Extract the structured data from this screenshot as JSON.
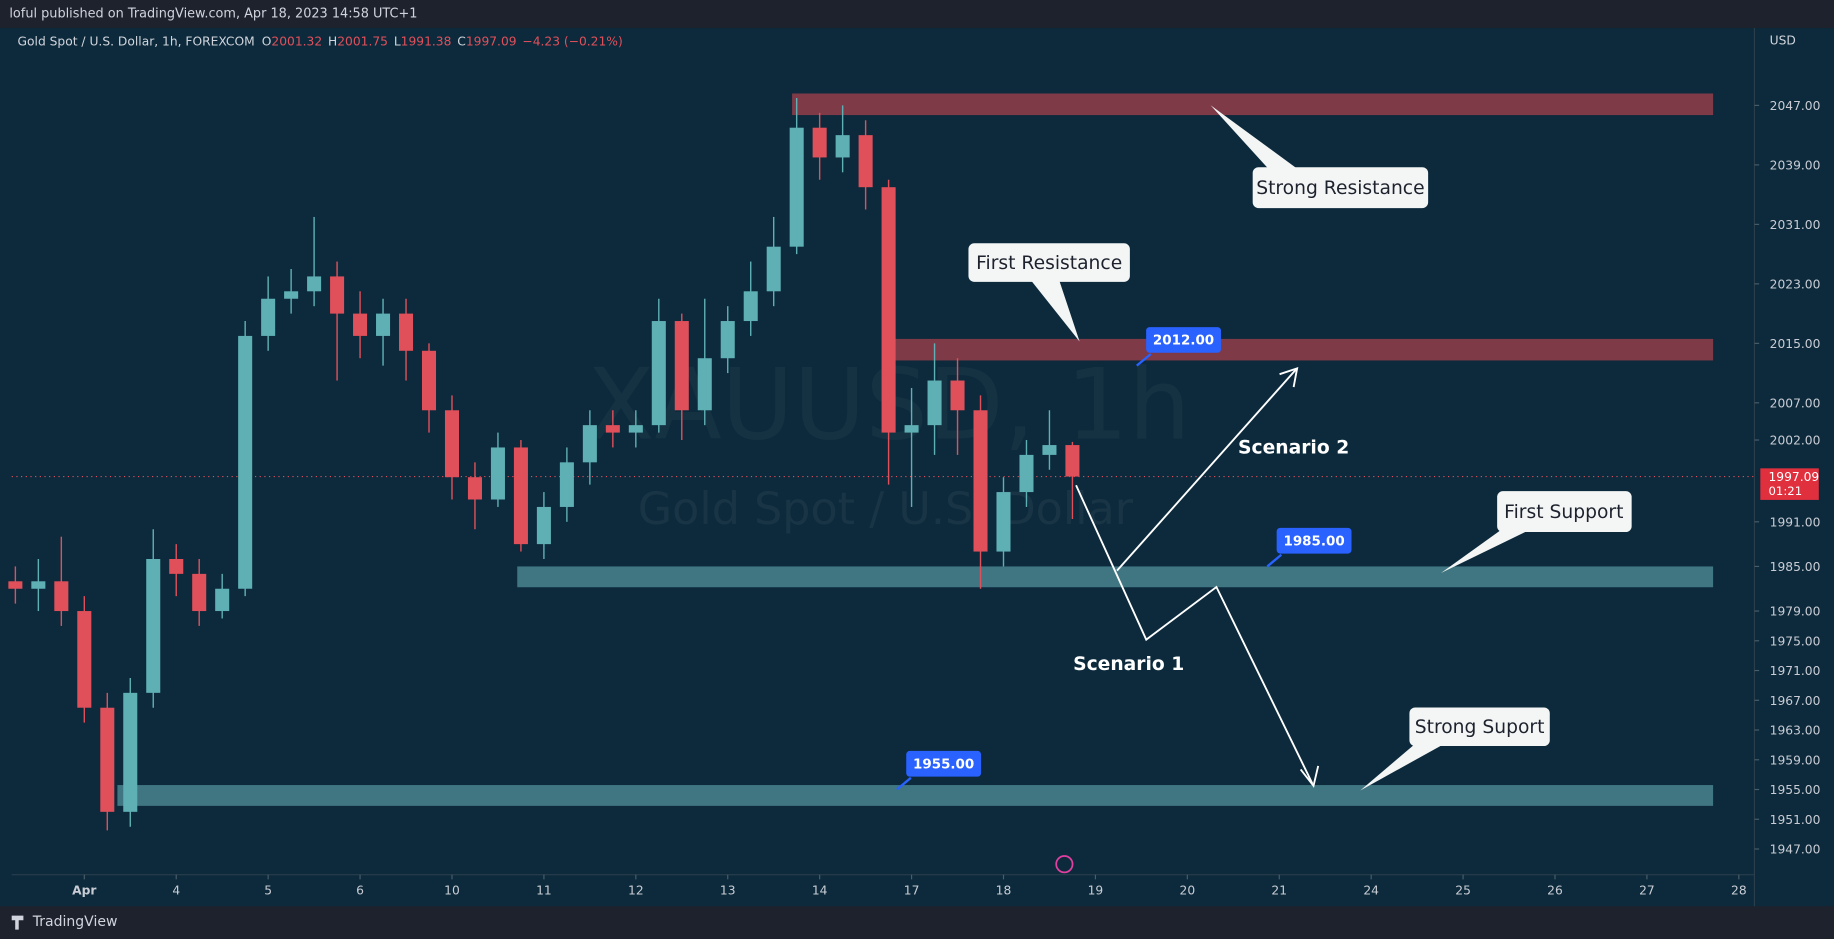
{
  "header": {
    "published": "loful published on TradingView.com, Apr 18, 2023 14:58 UTC+1",
    "brand": "TradingView"
  },
  "chart_data": {
    "type": "candlestick",
    "title": "Gold Spot / U.S. Dollar, 1h, FOREXCOM",
    "ohlc_labels": [
      "O",
      "H",
      "L",
      "C"
    ],
    "change": "−4.23 (−0.21%)",
    "currency": "USD",
    "watermark_symbol": "XAUUSD, 1h",
    "watermark_name": "Gold Spot / U.S. Dollar",
    "up_color": "#5fb0b4",
    "down_color": "#e0505b",
    "x": [
      -0.75,
      -0.5,
      -0.25,
      0,
      0.25,
      0.5,
      0.75,
      1,
      1.25,
      1.5,
      1.75,
      2,
      2.25,
      2.5,
      2.75,
      3,
      3.25,
      3.5,
      3.75,
      4,
      4.25,
      4.5,
      4.75,
      5,
      5.25,
      5.5,
      5.75,
      6,
      6.25,
      6.5,
      6.75,
      7,
      7.25,
      7.5,
      7.75,
      8,
      8.25,
      8.5,
      8.75,
      9,
      9.25,
      9.5,
      9.75,
      10,
      10.25,
      10.5,
      10.75
    ],
    "open": [
      1983,
      1982,
      1983,
      1979,
      1966,
      1952,
      1968,
      1986,
      1984,
      1979,
      1982,
      2016,
      2021,
      2022,
      2024,
      2019,
      2016,
      2019,
      2014,
      2006,
      1997,
      1994,
      2001,
      1988,
      1993,
      1999,
      2004,
      2003,
      2004,
      2018,
      2006,
      2013,
      2018,
      2022,
      2028,
      2044,
      2040,
      2043,
      2036,
      2003,
      2004,
      2010,
      2006,
      1987,
      1995,
      2000,
      2001.32
    ],
    "high": [
      1985,
      1986,
      1989,
      1981,
      1968,
      1970,
      1990,
      1988,
      1986,
      1984,
      2018,
      2024,
      2025,
      2032,
      2026,
      2022,
      2021,
      2021,
      2015,
      2008,
      1999,
      2003,
      2002,
      1995,
      2001,
      2006,
      2006,
      2006,
      2021,
      2019,
      2021,
      2020,
      2026,
      2032,
      2048,
      2046,
      2047,
      2045,
      2037,
      2009,
      2015,
      2013,
      2008,
      1997,
      2002,
      2006,
      2001.75
    ],
    "low": [
      1980,
      1979,
      1977,
      1964,
      1949.5,
      1950,
      1966,
      1981,
      1977,
      1978,
      1981,
      2014,
      2019,
      2020,
      2010,
      2013,
      2012,
      2010,
      2003,
      1994,
      1990,
      1993,
      1987,
      1986,
      1991,
      1996,
      2001,
      2001,
      2003,
      2002,
      2004,
      2011,
      2016,
      2020,
      2027,
      2037,
      2038,
      2033,
      1996,
      1993,
      2000,
      2000,
      1982,
      1985,
      1993,
      1998,
      1991.38
    ],
    "close": [
      1982,
      1983,
      1979,
      1966,
      1952,
      1968,
      1986,
      1984,
      1979,
      1982,
      2016,
      2021,
      2022,
      2024,
      2019,
      2016,
      2019,
      2014,
      2006,
      1997,
      1994,
      2001,
      1988,
      1993,
      1999,
      2004,
      2003,
      2004,
      2018,
      2006,
      2013,
      2018,
      2022,
      2028,
      2044,
      2040,
      2043,
      2036,
      2003,
      2004,
      2010,
      2006,
      1987,
      1995,
      2000,
      2001.32,
      1997.09
    ],
    "last_price": 1997.09,
    "countdown": "01:21",
    "ylim": [
      1939.3,
      2057.4
    ],
    "yticks": [
      {
        "value": 2047,
        "label": "2047.00"
      },
      {
        "value": 2039,
        "label": "2039.00"
      },
      {
        "value": 2031,
        "label": "2031.00"
      },
      {
        "value": 2023,
        "label": "2023.00"
      },
      {
        "value": 2015,
        "label": "2015.00"
      },
      {
        "value": 2007,
        "label": "2007.00"
      },
      {
        "value": 2002,
        "label": "2002.00"
      },
      {
        "value": 1991,
        "label": "1991.00"
      },
      {
        "value": 1985,
        "label": "1985.00"
      },
      {
        "value": 1979,
        "label": "1979.00"
      },
      {
        "value": 1975,
        "label": "1975.00"
      },
      {
        "value": 1971,
        "label": "1971.00"
      },
      {
        "value": 1967,
        "label": "1967.00"
      },
      {
        "value": 1963,
        "label": "1963.00"
      },
      {
        "value": 1959,
        "label": "1959.00"
      },
      {
        "value": 1955,
        "label": "1955.00"
      },
      {
        "value": 1951,
        "label": "1951.00"
      },
      {
        "value": 1947,
        "label": "1947.00"
      }
    ],
    "xlim": [
      -0.79,
      18.17
    ],
    "xticks": [
      {
        "value": 0,
        "label": "Apr"
      },
      {
        "value": 1,
        "label": "4"
      },
      {
        "value": 2,
        "label": "5"
      },
      {
        "value": 3,
        "label": "6"
      },
      {
        "value": 4,
        "label": "10"
      },
      {
        "value": 5,
        "label": "11"
      },
      {
        "value": 6,
        "label": "12"
      },
      {
        "value": 7,
        "label": "13"
      },
      {
        "value": 8,
        "label": "14"
      },
      {
        "value": 9,
        "label": "17"
      },
      {
        "value": 10,
        "label": "18"
      },
      {
        "value": 11,
        "label": "19"
      },
      {
        "value": 12,
        "label": "20"
      },
      {
        "value": 13,
        "label": "21"
      },
      {
        "value": 14,
        "label": "24"
      },
      {
        "value": 15,
        "label": "25"
      },
      {
        "value": 16,
        "label": "26"
      },
      {
        "value": 17,
        "label": "27"
      },
      {
        "value": 18,
        "label": "28"
      }
    ],
    "zones": [
      {
        "from": 2045.7,
        "to": 2048.6,
        "x_from": 7.7,
        "x_to": 17.72,
        "color": "#7e3a47"
      },
      {
        "from": 2012.7,
        "to": 2015.6,
        "x_from": 8.71,
        "x_to": 17.72,
        "color": "#7e3a47"
      },
      {
        "from": 1982.2,
        "to": 1985.0,
        "x_from": 4.71,
        "x_to": 17.72,
        "color": "#3f7681"
      },
      {
        "from": 1952.8,
        "to": 1955.6,
        "x_from": 0.36,
        "x_to": 17.72,
        "color": "#3f7681"
      }
    ],
    "price_labels": [
      {
        "value": 2012,
        "label": "2012.00",
        "x": 11.45
      },
      {
        "value": 1985,
        "label": "1985.00",
        "x": 12.87
      },
      {
        "value": 1955,
        "label": "1955.00",
        "x": 8.84
      }
    ],
    "callouts": [
      "Strong Resistance",
      "First Resistance",
      "First Support",
      "Strong Suport"
    ],
    "scenarios": [
      "Scenario 1",
      "Scenario 2"
    ]
  }
}
